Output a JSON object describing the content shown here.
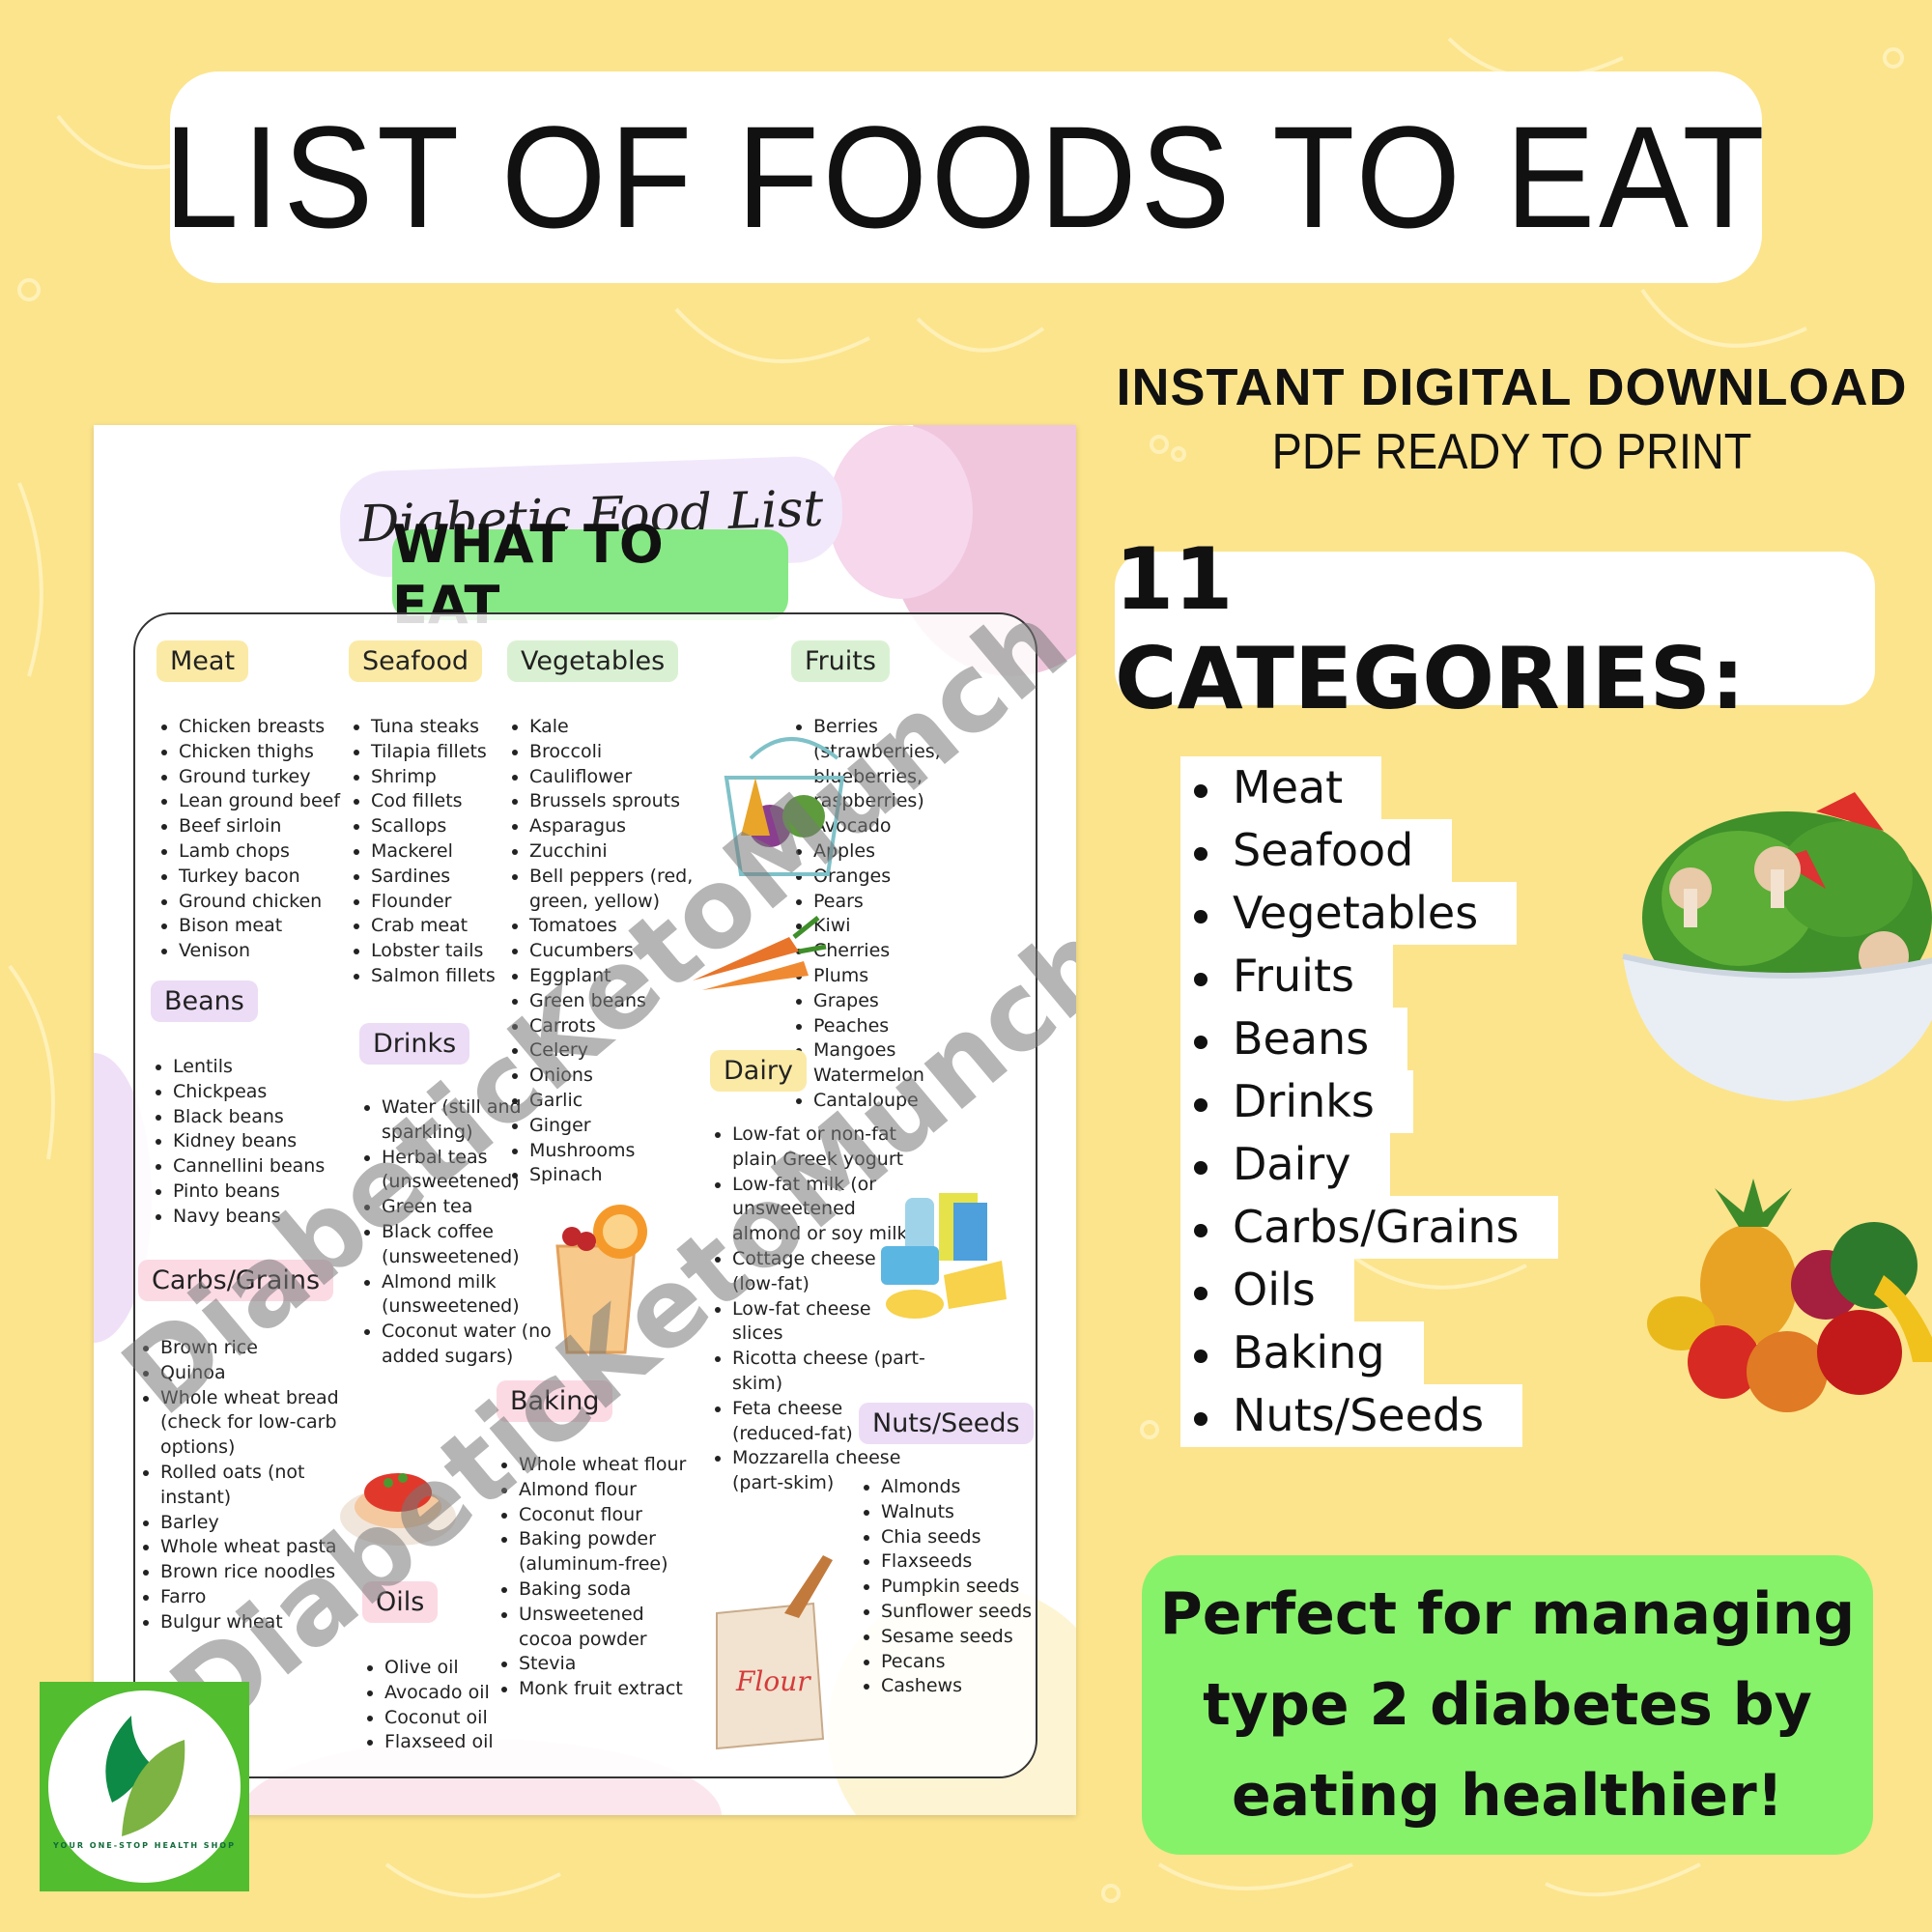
{
  "colors": {
    "background": "#fce48c",
    "title_box": "#ffffff",
    "green_box": "#86f26a",
    "what_to_eat": "#86e985",
    "header_yellow": "#fbeaa6",
    "header_green": "#d9f1d2",
    "header_purple": "#ecdcf6",
    "header_pink": "#fbdae4"
  },
  "header": {
    "title": "LIST OF FOODS TO EAT"
  },
  "promo": {
    "line1": "INSTANT DIGITAL DOWNLOAD",
    "line2": "PDF READY TO PRINT",
    "categories_heading": "11 CATEGORIES:"
  },
  "category_list": [
    "Meat",
    "Seafood",
    "Vegetables",
    "Fruits",
    "Beans",
    "Drinks",
    "Dairy",
    "Carbs/Grains",
    "Oils",
    "Baking",
    "Nuts/Seeds"
  ],
  "tagline": "Perfect for managing type 2 diabetes by eating healthier!",
  "document": {
    "title": "Diabetic Food List",
    "subtitle": "WHAT TO EAT",
    "watermark": "DiabeticKetoMunch",
    "sections": [
      {
        "name": "Meat",
        "color": "yellow",
        "items": [
          "Chicken breasts",
          "Chicken thighs",
          "Ground turkey",
          "Lean ground beef",
          "Beef sirloin",
          "Lamb chops",
          "Turkey bacon",
          "Ground chicken",
          "Bison meat",
          "Venison"
        ]
      },
      {
        "name": "Seafood",
        "color": "yellow",
        "items": [
          "Tuna steaks",
          "Tilapia fillets",
          "Shrimp",
          "Cod fillets",
          "Scallops",
          "Mackerel",
          "Sardines",
          "Flounder",
          "Crab meat",
          "Lobster tails",
          "Salmon fillets"
        ]
      },
      {
        "name": "Vegetables",
        "color": "green",
        "items": [
          "Kale",
          "Broccoli",
          "Cauliflower",
          "Brussels sprouts",
          "Asparagus",
          "Zucchini",
          "Bell peppers (red, green, yellow)",
          "Tomatoes",
          "Cucumbers",
          "Eggplant",
          "Green beans",
          "Carrots",
          "Celery",
          "Onions",
          "Garlic",
          "Ginger",
          "Mushrooms",
          "Spinach"
        ]
      },
      {
        "name": "Fruits",
        "color": "green",
        "items": [
          "Berries (strawberries, blueberries, raspberries)",
          "Avocado",
          "Apples",
          "Oranges",
          "Pears",
          "Kiwi",
          "Cherries",
          "Plums",
          "Grapes",
          "Peaches",
          "Mangoes",
          "Watermelon",
          "Cantaloupe"
        ]
      },
      {
        "name": "Beans",
        "color": "purple",
        "items": [
          "Lentils",
          "Chickpeas",
          "Black beans",
          "Kidney beans",
          "Cannellini beans",
          "Pinto beans",
          "Navy beans"
        ]
      },
      {
        "name": "Drinks",
        "color": "purple",
        "items": [
          "Water (still and sparkling)",
          "Herbal teas (unsweetened)",
          "Green tea",
          "Black coffee (unsweetened)",
          "Almond milk (unsweetened)",
          "Coconut water (no added sugars)"
        ]
      },
      {
        "name": "Dairy",
        "color": "yellow",
        "items": [
          "Low-fat or non-fat plain Greek yogurt",
          "Low-fat milk (or unsweetened almond or soy milk)",
          "Cottage cheese (low-fat)",
          "Low-fat cheese slices",
          "Ricotta cheese (part-skim)",
          "Feta cheese (reduced-fat)",
          "Mozzarella cheese (part-skim)"
        ]
      },
      {
        "name": "Carbs/Grains",
        "color": "pink",
        "items": [
          "Brown rice",
          "Quinoa",
          "Whole wheat bread (check for low-carb options)",
          "Rolled oats (not instant)",
          "Barley",
          "Whole wheat pasta",
          "Brown rice noodles",
          "Farro",
          "Bulgur wheat"
        ]
      },
      {
        "name": "Baking",
        "color": "pink",
        "items": [
          "Whole wheat flour",
          "Almond flour",
          "Coconut flour",
          "Baking powder (aluminum-free)",
          "Baking soda",
          "Unsweetened cocoa powder",
          "Stevia",
          "Monk fruit extract"
        ]
      },
      {
        "name": "Nuts/Seeds",
        "color": "purple",
        "items": [
          "Almonds",
          "Walnuts",
          "Chia seeds",
          "Flaxseeds",
          "Pumpkin seeds",
          "Sunflower seeds",
          "Sesame seeds",
          "Pecans",
          "Cashews"
        ]
      },
      {
        "name": "Oils",
        "color": "pink",
        "items": [
          "Olive oil",
          "Avocado oil",
          "Coconut oil",
          "Flaxseed oil"
        ]
      }
    ],
    "flour_bag_label": "Flour"
  },
  "logo": {
    "tagline": "YOUR ONE-STOP HEALTH SHOP"
  }
}
